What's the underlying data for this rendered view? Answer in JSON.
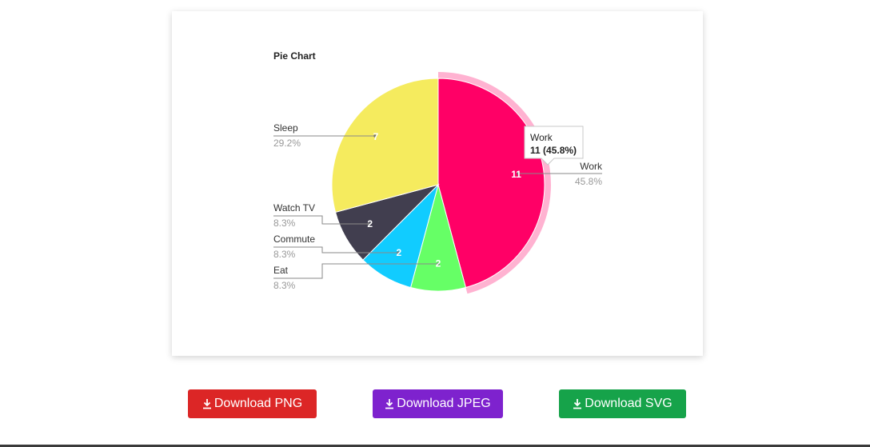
{
  "chart_data": {
    "type": "pie",
    "title": "Pie Chart",
    "categories": [
      "Work",
      "Eat",
      "Commute",
      "Watch TV",
      "Sleep"
    ],
    "values": [
      11,
      2,
      2,
      2,
      7
    ],
    "percent_labels": [
      "45.8%",
      "8.3%",
      "8.3%",
      "8.3%",
      "29.2%"
    ],
    "colors": [
      "#ff0066",
      "#66ff66",
      "#11ccff",
      "#413e4f",
      "#f5eb5e"
    ],
    "highlighted": "Work",
    "tooltip": {
      "name": "Work",
      "value": "11 (45.8%)"
    }
  },
  "buttons": {
    "png": "Download PNG",
    "jpeg": "Download JPEG",
    "svg": "Download SVG"
  },
  "icons": {
    "download": "download-icon"
  }
}
